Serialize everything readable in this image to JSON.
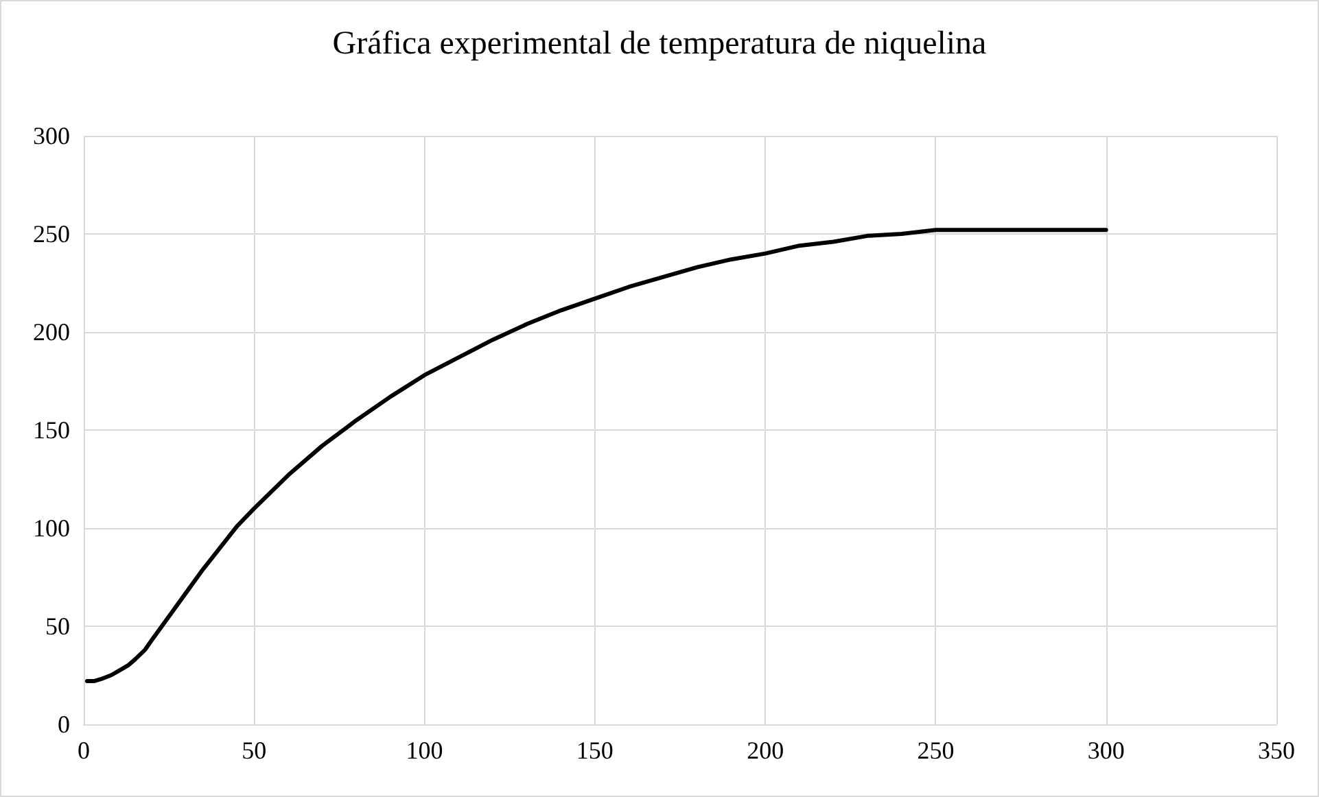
{
  "chart_data": {
    "type": "line",
    "title": "Gráfica experimental de temperatura de niquelina",
    "x": [
      1,
      3,
      5,
      8,
      10,
      13,
      15,
      18,
      20,
      25,
      30,
      35,
      40,
      45,
      50,
      60,
      70,
      80,
      90,
      100,
      110,
      120,
      130,
      140,
      150,
      160,
      170,
      180,
      190,
      200,
      210,
      220,
      230,
      240,
      250,
      260,
      280,
      300
    ],
    "series": [
      {
        "color": "#000000",
        "values": [
          22,
          22,
          23,
          25,
          27,
          30,
          33,
          38,
          43,
          55,
          67,
          79,
          90,
          101,
          110,
          127,
          142,
          155,
          167,
          178,
          187,
          196,
          204,
          211,
          217,
          223,
          228,
          233,
          237,
          240,
          244,
          246,
          249,
          250,
          252,
          252,
          252,
          252
        ]
      }
    ],
    "xlim": [
      0,
      350
    ],
    "xticks": [
      0,
      50,
      100,
      150,
      200,
      250,
      300,
      350
    ],
    "ylim": [
      0,
      300
    ],
    "yticks": [
      0,
      50,
      100,
      150,
      200,
      250,
      300
    ],
    "grid": true,
    "marker": "none",
    "line_style": "solid"
  }
}
